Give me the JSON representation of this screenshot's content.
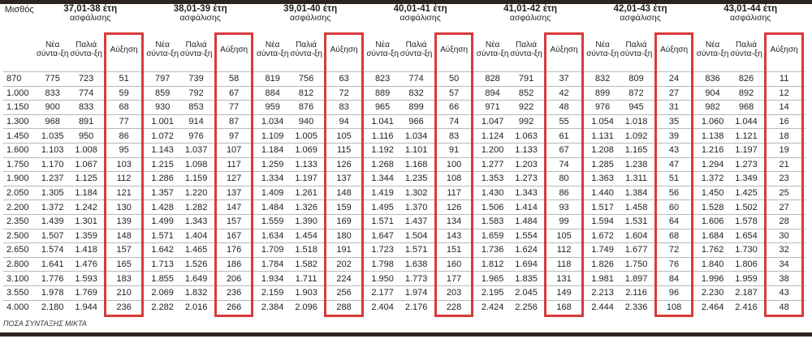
{
  "salary_header": "Μισθός",
  "subheaders": {
    "new": "Νέα σύντα-ξη",
    "old": "Παλιά σύντα-ξη",
    "increase": "Αύξηση"
  },
  "footnote": "ΠΟΣΑ ΣΥΝΤΑΞΗΣ ΜΙΚΤΑ",
  "highlight_color": "#d93a3a",
  "groups": [
    {
      "title": "37,01-38 έτη",
      "subtitle": "ασφάλισης"
    },
    {
      "title": "38,01-39 έτη",
      "subtitle": "ασφάλισης"
    },
    {
      "title": "39,01-40 έτη",
      "subtitle": "ασφάλισης"
    },
    {
      "title": "40,01-41 έτη",
      "subtitle": "ασφάλισης"
    },
    {
      "title": "41,01-42 έτη",
      "subtitle": "ασφάλισης"
    },
    {
      "title": "42,01-43 έτη",
      "subtitle": "ασφάλισης"
    },
    {
      "title": "43,01-44 έτη",
      "subtitle": "ασφάλισης"
    }
  ],
  "rows": [
    {
      "salary": "870",
      "cells": [
        [
          "775",
          "723",
          "51"
        ],
        [
          "797",
          "739",
          "58"
        ],
        [
          "819",
          "756",
          "63"
        ],
        [
          "823",
          "774",
          "50"
        ],
        [
          "828",
          "791",
          "37"
        ],
        [
          "832",
          "809",
          "24"
        ],
        [
          "836",
          "826",
          "11"
        ]
      ]
    },
    {
      "salary": "1.000",
      "cells": [
        [
          "833",
          "774",
          "59"
        ],
        [
          "859",
          "792",
          "67"
        ],
        [
          "884",
          "812",
          "72"
        ],
        [
          "889",
          "832",
          "57"
        ],
        [
          "894",
          "852",
          "42"
        ],
        [
          "899",
          "872",
          "27"
        ],
        [
          "904",
          "892",
          "12"
        ]
      ]
    },
    {
      "salary": "1.150",
      "cells": [
        [
          "900",
          "833",
          "68"
        ],
        [
          "930",
          "853",
          "77"
        ],
        [
          "959",
          "876",
          "83"
        ],
        [
          "965",
          "899",
          "66"
        ],
        [
          "971",
          "922",
          "48"
        ],
        [
          "976",
          "945",
          "31"
        ],
        [
          "982",
          "968",
          "14"
        ]
      ]
    },
    {
      "salary": "1.300",
      "cells": [
        [
          "968",
          "891",
          "77"
        ],
        [
          "1.001",
          "914",
          "87"
        ],
        [
          "1.034",
          "940",
          "94"
        ],
        [
          "1.041",
          "966",
          "74"
        ],
        [
          "1.047",
          "992",
          "55"
        ],
        [
          "1.054",
          "1.018",
          "35"
        ],
        [
          "1.060",
          "1.044",
          "16"
        ]
      ]
    },
    {
      "salary": "1.450",
      "cells": [
        [
          "1.035",
          "950",
          "86"
        ],
        [
          "1.072",
          "976",
          "97"
        ],
        [
          "1.109",
          "1.005",
          "105"
        ],
        [
          "1.116",
          "1.034",
          "83"
        ],
        [
          "1.124",
          "1.063",
          "61"
        ],
        [
          "1.131",
          "1.092",
          "39"
        ],
        [
          "1.138",
          "1.121",
          "18"
        ]
      ]
    },
    {
      "salary": "1.600",
      "cells": [
        [
          "1.103",
          "1.008",
          "95"
        ],
        [
          "1.143",
          "1.037",
          "107"
        ],
        [
          "1.184",
          "1.069",
          "115"
        ],
        [
          "1.192",
          "1.101",
          "91"
        ],
        [
          "1.200",
          "1.133",
          "67"
        ],
        [
          "1.208",
          "1.165",
          "43"
        ],
        [
          "1.216",
          "1.197",
          "19"
        ]
      ]
    },
    {
      "salary": "1.750",
      "cells": [
        [
          "1.170",
          "1.067",
          "103"
        ],
        [
          "1.215",
          "1.098",
          "117"
        ],
        [
          "1.259",
          "1.133",
          "126"
        ],
        [
          "1.268",
          "1.168",
          "100"
        ],
        [
          "1.277",
          "1.203",
          "74"
        ],
        [
          "1.285",
          "1.238",
          "47"
        ],
        [
          "1.294",
          "1.273",
          "21"
        ]
      ]
    },
    {
      "salary": "1.900",
      "cells": [
        [
          "1.237",
          "1.125",
          "112"
        ],
        [
          "1.286",
          "1.159",
          "127"
        ],
        [
          "1.334",
          "1.197",
          "137"
        ],
        [
          "1.344",
          "1.235",
          "108"
        ],
        [
          "1.353",
          "1.273",
          "80"
        ],
        [
          "1.363",
          "1.311",
          "51"
        ],
        [
          "1.372",
          "1.349",
          "23"
        ]
      ]
    },
    {
      "salary": "2.050",
      "cells": [
        [
          "1.305",
          "1.184",
          "121"
        ],
        [
          "1.357",
          "1.220",
          "137"
        ],
        [
          "1.409",
          "1.261",
          "148"
        ],
        [
          "1.419",
          "1.302",
          "117"
        ],
        [
          "1.430",
          "1.343",
          "86"
        ],
        [
          "1.440",
          "1.384",
          "56"
        ],
        [
          "1.450",
          "1.425",
          "25"
        ]
      ]
    },
    {
      "salary": "2.200",
      "cells": [
        [
          "1.372",
          "1.242",
          "130"
        ],
        [
          "1.428",
          "1.282",
          "147"
        ],
        [
          "1.484",
          "1.326",
          "159"
        ],
        [
          "1.495",
          "1.370",
          "126"
        ],
        [
          "1.506",
          "1.414",
          "93"
        ],
        [
          "1.517",
          "1.458",
          "60"
        ],
        [
          "1.528",
          "1.502",
          "27"
        ]
      ]
    },
    {
      "salary": "2.350",
      "cells": [
        [
          "1.439",
          "1.301",
          "139"
        ],
        [
          "1.499",
          "1.343",
          "157"
        ],
        [
          "1.559",
          "1.390",
          "169"
        ],
        [
          "1.571",
          "1.437",
          "134"
        ],
        [
          "1.583",
          "1.484",
          "99"
        ],
        [
          "1.594",
          "1.531",
          "64"
        ],
        [
          "1.606",
          "1.578",
          "28"
        ]
      ]
    },
    {
      "salary": "2.500",
      "cells": [
        [
          "1.507",
          "1.359",
          "148"
        ],
        [
          "1.571",
          "1.404",
          "167"
        ],
        [
          "1.634",
          "1.454",
          "180"
        ],
        [
          "1.647",
          "1.504",
          "143"
        ],
        [
          "1.659",
          "1.554",
          "105"
        ],
        [
          "1.672",
          "1.604",
          "68"
        ],
        [
          "1.684",
          "1.654",
          "30"
        ]
      ]
    },
    {
      "salary": "2.650",
      "cells": [
        [
          "1.574",
          "1.418",
          "157"
        ],
        [
          "1.642",
          "1.465",
          "176"
        ],
        [
          "1.709",
          "1.518",
          "191"
        ],
        [
          "1.723",
          "1.571",
          "151"
        ],
        [
          "1.736",
          "1.624",
          "112"
        ],
        [
          "1.749",
          "1.677",
          "72"
        ],
        [
          "1.762",
          "1.730",
          "32"
        ]
      ]
    },
    {
      "salary": "2.800",
      "cells": [
        [
          "1.641",
          "1.476",
          "165"
        ],
        [
          "1.713",
          "1.526",
          "186"
        ],
        [
          "1.784",
          "1.582",
          "202"
        ],
        [
          "1.798",
          "1.638",
          "160"
        ],
        [
          "1.812",
          "1.694",
          "118"
        ],
        [
          "1.826",
          "1.750",
          "76"
        ],
        [
          "1.840",
          "1.806",
          "34"
        ]
      ]
    },
    {
      "salary": "3.100",
      "cells": [
        [
          "1.776",
          "1.593",
          "183"
        ],
        [
          "1.855",
          "1.649",
          "206"
        ],
        [
          "1.934",
          "1.711",
          "224"
        ],
        [
          "1.950",
          "1.773",
          "177"
        ],
        [
          "1.965",
          "1.835",
          "131"
        ],
        [
          "1.981",
          "1.897",
          "84"
        ],
        [
          "1.996",
          "1.959",
          "38"
        ]
      ]
    },
    {
      "salary": "3.550",
      "cells": [
        [
          "1.978",
          "1.769",
          "210"
        ],
        [
          "2.069",
          "1.832",
          "236"
        ],
        [
          "2.159",
          "1.903",
          "256"
        ],
        [
          "2.177",
          "1.974",
          "203"
        ],
        [
          "2.195",
          "2.045",
          "149"
        ],
        [
          "2.213",
          "2.116",
          "96"
        ],
        [
          "2.230",
          "2.187",
          "43"
        ]
      ]
    },
    {
      "salary": "4.000",
      "cells": [
        [
          "2.180",
          "1.944",
          "236"
        ],
        [
          "2.282",
          "2.016",
          "266"
        ],
        [
          "2.384",
          "2.096",
          "288"
        ],
        [
          "2.404",
          "2.176",
          "228"
        ],
        [
          "2.424",
          "2.256",
          "168"
        ],
        [
          "2.444",
          "2.336",
          "108"
        ],
        [
          "2.464",
          "2.416",
          "48"
        ]
      ]
    }
  ]
}
